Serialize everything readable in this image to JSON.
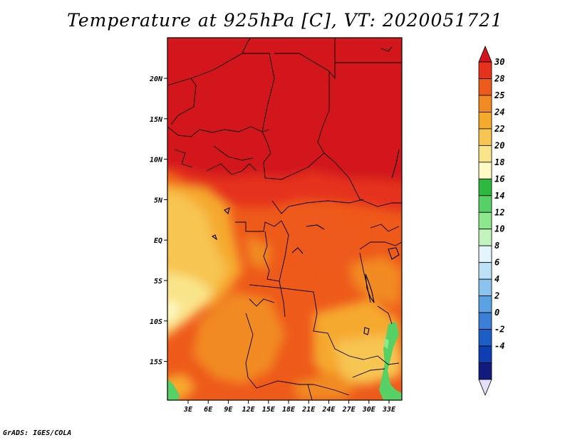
{
  "title": "Temperature at 925hPa [C], VT: 2020051721",
  "credit": "GrADS: IGES/COLA",
  "map": {
    "lat_labels": [
      "20N",
      "15N",
      "10N",
      "5N",
      "EQ",
      "5S",
      "10S",
      "15S"
    ],
    "lon_labels": [
      "3E",
      "6E",
      "9E",
      "12E",
      "15E",
      "18E",
      "21E",
      "24E",
      "27E",
      "30E",
      "33E"
    ]
  },
  "colorbar": {
    "labels": [
      "30",
      "28",
      "25",
      "24",
      "22",
      "20",
      "18",
      "16",
      "14",
      "12",
      "10",
      "8",
      "6",
      "4",
      "2",
      "0",
      "-2",
      "-4"
    ],
    "colors": [
      "#d2151a",
      "#e5321a",
      "#ee5a1a",
      "#f18a23",
      "#f5a92d",
      "#f7c551",
      "#fae48a",
      "#fdfac4",
      "#2db83e",
      "#57d065",
      "#8be88c",
      "#c1f5bd",
      "#e3f4fb",
      "#bde2f7",
      "#8ac4ee",
      "#5aa2e2",
      "#3b80d6",
      "#1c5ec8",
      "#0e3eb1",
      "#111a7d",
      "#e3e0f8"
    ]
  }
}
